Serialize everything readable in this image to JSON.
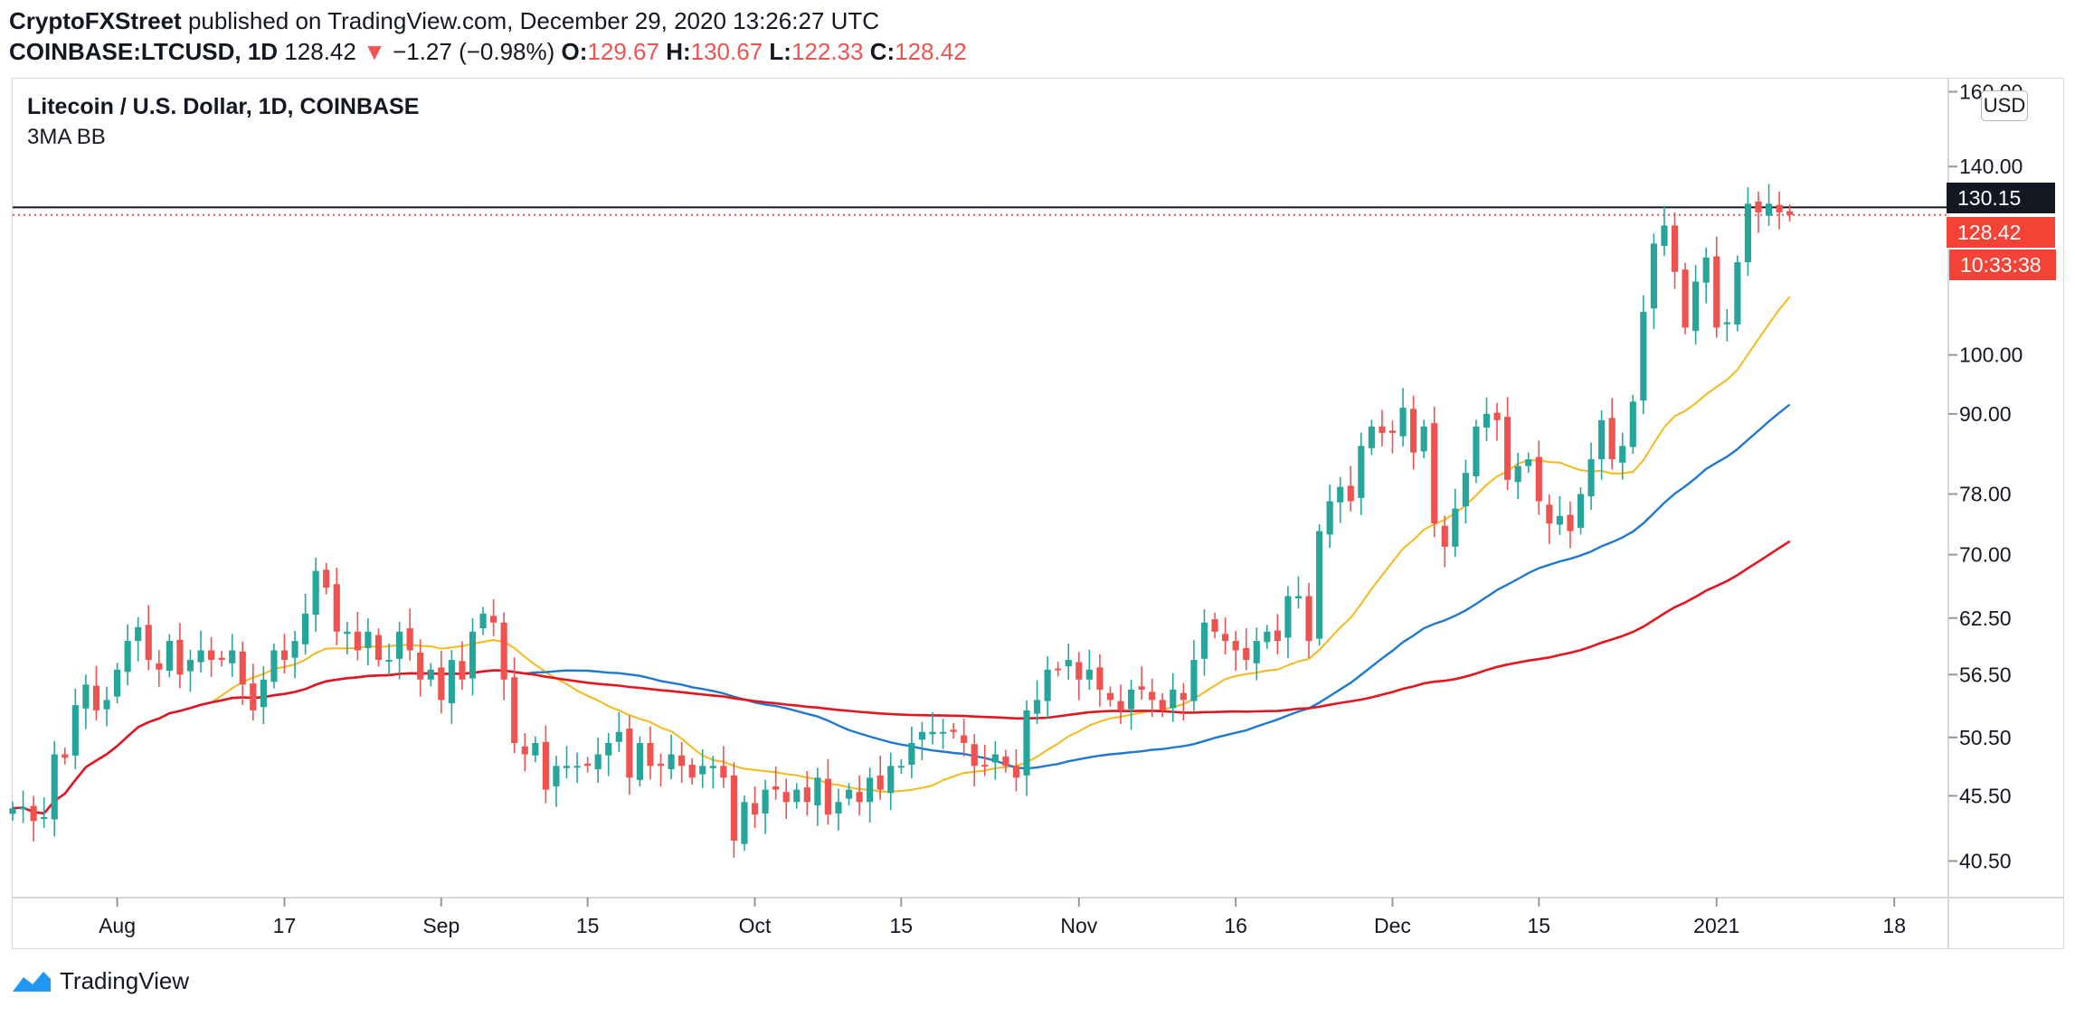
{
  "header": {
    "author": "CryptoFXStreet",
    "published_text": "published on TradingView.com, December 29, 2020 13:26:27 UTC",
    "symbol": "COINBASE:LTCUSD, 1D",
    "price": "128.42",
    "change_arrow": "▼",
    "change": "−1.27 (−0.98%)",
    "o_label": "O:",
    "o_value": "129.67",
    "h_label": "H:",
    "h_value": "130.67",
    "l_label": "L:",
    "l_value": "122.33",
    "c_label": "C:",
    "c_value": "128.42"
  },
  "pane": {
    "title": "Litecoin / U.S. Dollar, 1D, COINBASE",
    "indicator": "3MA BB"
  },
  "scale": {
    "currency": "USD",
    "last_label": "130.15",
    "close_label": "128.42",
    "timer": "10:33:38",
    "ticks": [
      "160.00",
      "140.00",
      "100.00",
      "90.00",
      "78.00",
      "70.00",
      "62.50",
      "56.50",
      "50.50",
      "45.50",
      "40.50"
    ]
  },
  "footer": {
    "brand": "TradingView"
  },
  "colors": {
    "up": "#26a69a",
    "down": "#ef5350",
    "ma_fast": "#f5b91c",
    "ma_mid": "#1e78d2",
    "ma_slow": "#e5141e"
  },
  "chart_data": {
    "type": "candlestick",
    "title": "Litecoin / U.S. Dollar, 1D, COINBASE",
    "y_scale": "log",
    "y_range": [
      38,
      163
    ],
    "x_ticks": [
      {
        "label": "Aug",
        "date": "2020-08-01"
      },
      {
        "label": "17",
        "date": "2020-08-17"
      },
      {
        "label": "Sep",
        "date": "2020-09-01"
      },
      {
        "label": "15",
        "date": "2020-09-15"
      },
      {
        "label": "Oct",
        "date": "2020-10-01"
      },
      {
        "label": "15",
        "date": "2020-10-15"
      },
      {
        "label": "Nov",
        "date": "2020-11-01"
      },
      {
        "label": "16",
        "date": "2020-11-16"
      },
      {
        "label": "Dec",
        "date": "2020-12-01"
      },
      {
        "label": "15",
        "date": "2020-12-15"
      },
      {
        "label": "2021",
        "date": "2021-01-01"
      },
      {
        "label": "18",
        "date": "2021-01-18"
      }
    ],
    "x_range": [
      "2020-07-22",
      "2021-01-23"
    ],
    "candles_close": [
      44.5,
      44.6,
      43.5,
      43.8,
      49,
      48.7,
      53.5,
      55.5,
      53,
      54,
      57,
      60,
      61.5,
      58,
      57,
      60,
      56.5,
      58,
      59,
      58,
      58,
      59,
      55.5,
      53,
      56,
      59,
      58,
      60,
      63,
      68,
      66,
      61,
      61,
      59,
      61,
      58,
      58,
      61,
      59,
      56,
      57,
      54,
      58,
      56,
      61,
      63,
      62,
      56,
      50,
      49,
      50,
      46,
      48,
      48,
      48,
      48,
      49,
      50,
      51,
      47,
      50,
      48,
      48,
      49,
      48,
      47,
      48,
      48,
      47,
      42,
      45,
      44,
      46,
      46,
      45,
      46,
      45,
      47,
      44,
      45,
      46,
      45,
      47,
      46,
      48,
      48,
      50,
      51,
      51,
      51,
      51,
      50,
      48,
      48,
      49,
      48,
      47,
      53,
      54,
      57,
      57,
      58,
      56,
      57,
      55,
      54,
      53,
      55,
      55,
      54,
      53,
      55,
      54,
      58,
      62,
      61,
      60,
      59,
      58,
      60,
      61,
      60,
      65,
      65,
      60,
      73,
      77,
      79,
      77,
      85,
      88,
      87,
      87,
      91,
      84,
      88,
      74,
      71,
      76,
      81,
      88,
      90,
      89,
      80,
      82,
      83,
      77,
      74,
      75,
      73,
      78,
      83,
      89,
      83,
      85,
      92,
      108,
      122,
      126,
      116,
      105,
      114,
      119,
      105,
      106,
      118,
      131,
      129,
      131,
      129,
      128.42
    ]
  }
}
